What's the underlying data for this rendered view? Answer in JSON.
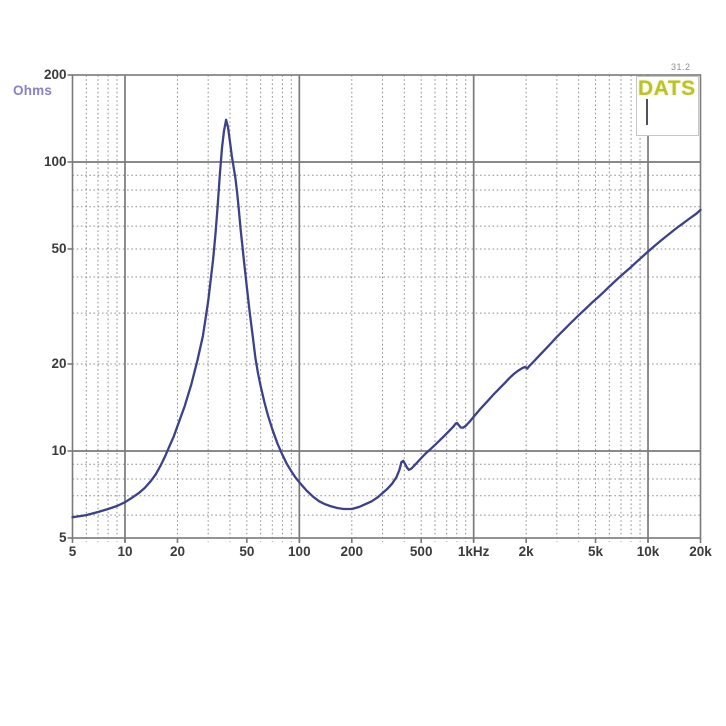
{
  "header": {
    "logo_label": "DATS",
    "version_label": "31.2"
  },
  "colors": {
    "curve": "#3d4189",
    "logo": "#bcc22a",
    "unit_label": "#8781c6",
    "grid_major": "#7a7a7a",
    "grid_minor": "#8f8f8f",
    "tick_label": "#3b3b3b",
    "background": "#ffffff"
  },
  "chart_data": {
    "type": "line",
    "title": "",
    "ylabel": "Ohms",
    "xlabel": "",
    "x_scale": "log",
    "y_scale": "log",
    "xlim": [
      5,
      20000
    ],
    "ylim": [
      5,
      200
    ],
    "grid": "log-dotted-minor-solid-major",
    "legend": "none",
    "x_ticks": [
      {
        "v": 5,
        "label": "5"
      },
      {
        "v": 10,
        "label": "10"
      },
      {
        "v": 20,
        "label": "20"
      },
      {
        "v": 50,
        "label": "50"
      },
      {
        "v": 100,
        "label": "100"
      },
      {
        "v": 200,
        "label": "200"
      },
      {
        "v": 500,
        "label": "500"
      },
      {
        "v": 1000,
        "label": "1kHz"
      },
      {
        "v": 2000,
        "label": "2k"
      },
      {
        "v": 5000,
        "label": "5k"
      },
      {
        "v": 10000,
        "label": "10k"
      },
      {
        "v": 20000,
        "label": "20k"
      }
    ],
    "y_ticks": [
      {
        "v": 200,
        "label": "200"
      },
      {
        "v": 100,
        "label": "100"
      },
      {
        "v": 50,
        "label": "50"
      },
      {
        "v": 20,
        "label": "20"
      },
      {
        "v": 10,
        "label": "10"
      },
      {
        "v": 5,
        "label": "5"
      }
    ],
    "x_major": [
      10,
      100,
      1000,
      10000
    ],
    "y_major": [
      10,
      100
    ],
    "annotations": {
      "resonance_peak": {
        "frequency_hz": 38,
        "impedance_ohms": 140
      },
      "minimum": {
        "frequency_hz": 180,
        "impedance_ohms": 6.3
      },
      "end_value": {
        "frequency_hz": 20000,
        "impedance_ohms": 68.5
      }
    },
    "series": [
      {
        "name": "impedance",
        "points": [
          [
            5,
            5.9
          ],
          [
            6,
            6.0
          ],
          [
            7,
            6.15
          ],
          [
            8,
            6.3
          ],
          [
            9,
            6.45
          ],
          [
            10,
            6.65
          ],
          [
            11,
            6.9
          ],
          [
            12,
            7.15
          ],
          [
            13,
            7.45
          ],
          [
            14,
            7.85
          ],
          [
            15,
            8.3
          ],
          [
            16,
            8.9
          ],
          [
            17,
            9.6
          ],
          [
            18,
            10.4
          ],
          [
            19,
            11.2
          ],
          [
            20,
            12.2
          ],
          [
            22,
            14.3
          ],
          [
            24,
            17
          ],
          [
            26,
            20.5
          ],
          [
            28,
            25
          ],
          [
            30,
            33
          ],
          [
            32,
            46
          ],
          [
            33,
            56
          ],
          [
            34,
            70
          ],
          [
            35,
            90
          ],
          [
            36,
            112
          ],
          [
            37,
            128
          ],
          [
            38,
            140
          ],
          [
            39,
            132
          ],
          [
            40,
            118
          ],
          [
            41,
            105
          ],
          [
            42,
            96
          ],
          [
            43,
            88
          ],
          [
            44,
            78
          ],
          [
            45,
            68
          ],
          [
            46,
            59
          ],
          [
            47,
            52
          ],
          [
            48,
            46
          ],
          [
            50,
            37
          ],
          [
            52,
            30
          ],
          [
            54,
            25
          ],
          [
            56,
            21
          ],
          [
            58,
            18.5
          ],
          [
            60,
            16.8
          ],
          [
            63,
            14.8
          ],
          [
            66,
            13.3
          ],
          [
            70,
            11.9
          ],
          [
            75,
            10.6
          ],
          [
            80,
            9.7
          ],
          [
            85,
            9.0
          ],
          [
            90,
            8.5
          ],
          [
            95,
            8.1
          ],
          [
            100,
            7.8
          ],
          [
            110,
            7.3
          ],
          [
            120,
            6.95
          ],
          [
            130,
            6.7
          ],
          [
            140,
            6.55
          ],
          [
            150,
            6.45
          ],
          [
            165,
            6.35
          ],
          [
            180,
            6.3
          ],
          [
            200,
            6.3
          ],
          [
            220,
            6.4
          ],
          [
            240,
            6.55
          ],
          [
            260,
            6.7
          ],
          [
            280,
            6.9
          ],
          [
            300,
            7.15
          ],
          [
            320,
            7.4
          ],
          [
            340,
            7.7
          ],
          [
            360,
            8.1
          ],
          [
            375,
            8.6
          ],
          [
            385,
            9.15
          ],
          [
            395,
            9.25
          ],
          [
            405,
            9.0
          ],
          [
            415,
            8.75
          ],
          [
            425,
            8.6
          ],
          [
            440,
            8.7
          ],
          [
            460,
            8.95
          ],
          [
            480,
            9.2
          ],
          [
            500,
            9.45
          ],
          [
            530,
            9.8
          ],
          [
            560,
            10.1
          ],
          [
            600,
            10.5
          ],
          [
            640,
            10.9
          ],
          [
            680,
            11.3
          ],
          [
            720,
            11.7
          ],
          [
            760,
            12.1
          ],
          [
            790,
            12.45
          ],
          [
            805,
            12.5
          ],
          [
            820,
            12.3
          ],
          [
            845,
            12.05
          ],
          [
            870,
            12.05
          ],
          [
            900,
            12.25
          ],
          [
            950,
            12.7
          ],
          [
            1000,
            13.2
          ],
          [
            1100,
            14.1
          ],
          [
            1200,
            14.9
          ],
          [
            1300,
            15.7
          ],
          [
            1400,
            16.4
          ],
          [
            1500,
            17.1
          ],
          [
            1600,
            17.8
          ],
          [
            1700,
            18.4
          ],
          [
            1800,
            18.9
          ],
          [
            1900,
            19.3
          ],
          [
            1970,
            19.5
          ],
          [
            2030,
            19.3
          ],
          [
            2100,
            19.8
          ],
          [
            2200,
            20.4
          ],
          [
            2400,
            21.6
          ],
          [
            2600,
            22.7
          ],
          [
            2800,
            23.8
          ],
          [
            3000,
            24.9
          ],
          [
            3300,
            26.3
          ],
          [
            3600,
            27.7
          ],
          [
            4000,
            29.4
          ],
          [
            4400,
            31
          ],
          [
            4800,
            32.6
          ],
          [
            5200,
            34
          ],
          [
            5600,
            35.5
          ],
          [
            6000,
            37
          ],
          [
            6500,
            38.8
          ],
          [
            7000,
            40.5
          ],
          [
            7500,
            42
          ],
          [
            8000,
            43.5
          ],
          [
            8500,
            45
          ],
          [
            9000,
            46.4
          ],
          [
            9500,
            47.7
          ],
          [
            10000,
            49
          ],
          [
            11000,
            51.4
          ],
          [
            12000,
            53.6
          ],
          [
            13000,
            55.7
          ],
          [
            14000,
            57.7
          ],
          [
            15000,
            59.6
          ],
          [
            16000,
            61.4
          ],
          [
            17000,
            63.2
          ],
          [
            18000,
            64.9
          ],
          [
            19000,
            66.5
          ],
          [
            20000,
            68.5
          ]
        ]
      }
    ]
  }
}
